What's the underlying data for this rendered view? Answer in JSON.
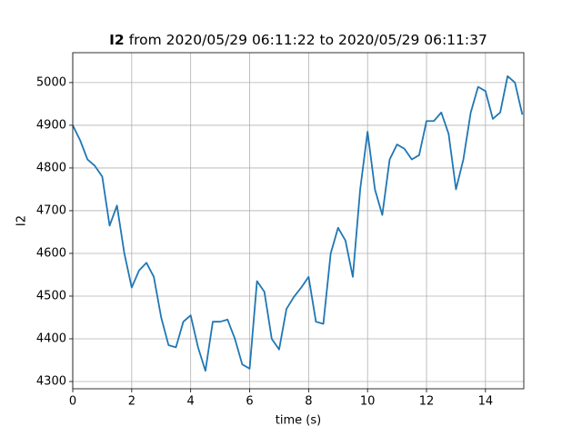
{
  "chart_data": {
    "type": "line",
    "title_bold": "I2",
    "title": "from 2020/05/29 06:11:22 to 2020/05/29 06:11:37",
    "xlabel": "time (s)",
    "ylabel": "I2",
    "x": [
      0,
      0.25,
      0.5,
      0.75,
      1,
      1.25,
      1.5,
      1.75,
      2,
      2.25,
      2.5,
      2.75,
      3,
      3.25,
      3.5,
      3.75,
      4,
      4.25,
      4.5,
      4.75,
      5,
      5.25,
      5.5,
      5.75,
      6,
      6.25,
      6.5,
      6.75,
      7,
      7.25,
      7.5,
      7.75,
      8,
      8.25,
      8.5,
      8.75,
      9,
      9.25,
      9.5,
      9.75,
      10,
      10.25,
      10.5,
      10.75,
      11,
      11.25,
      11.5,
      11.75,
      12,
      12.25,
      12.5,
      12.75,
      13,
      13.25,
      13.5,
      13.75,
      14,
      14.25,
      14.5,
      14.75,
      15,
      15.25
    ],
    "values": [
      4900,
      4865,
      4820,
      4805,
      4780,
      4665,
      4712,
      4600,
      4520,
      4560,
      4578,
      4545,
      4450,
      4385,
      4380,
      4440,
      4455,
      4380,
      4325,
      4440,
      4440,
      4445,
      4400,
      4340,
      4330,
      4535,
      4510,
      4400,
      4375,
      4470,
      4498,
      4520,
      4545,
      4440,
      4435,
      4600,
      4660,
      4630,
      4545,
      4750,
      4885,
      4750,
      4690,
      4820,
      4855,
      4845,
      4820,
      4830,
      4910,
      4910,
      4930,
      4880,
      4750,
      4820,
      4930,
      4990,
      4980,
      4915,
      4930,
      5015,
      5000,
      4925
    ],
    "color": "#1f77b4",
    "xlim": [
      0,
      15.3
    ],
    "ylim": [
      4283,
      5070
    ],
    "xticks": [
      0,
      2,
      4,
      6,
      8,
      10,
      12,
      14
    ],
    "yticks": [
      4300,
      4400,
      4500,
      4600,
      4700,
      4800,
      4900,
      5000
    ],
    "grid": true
  }
}
